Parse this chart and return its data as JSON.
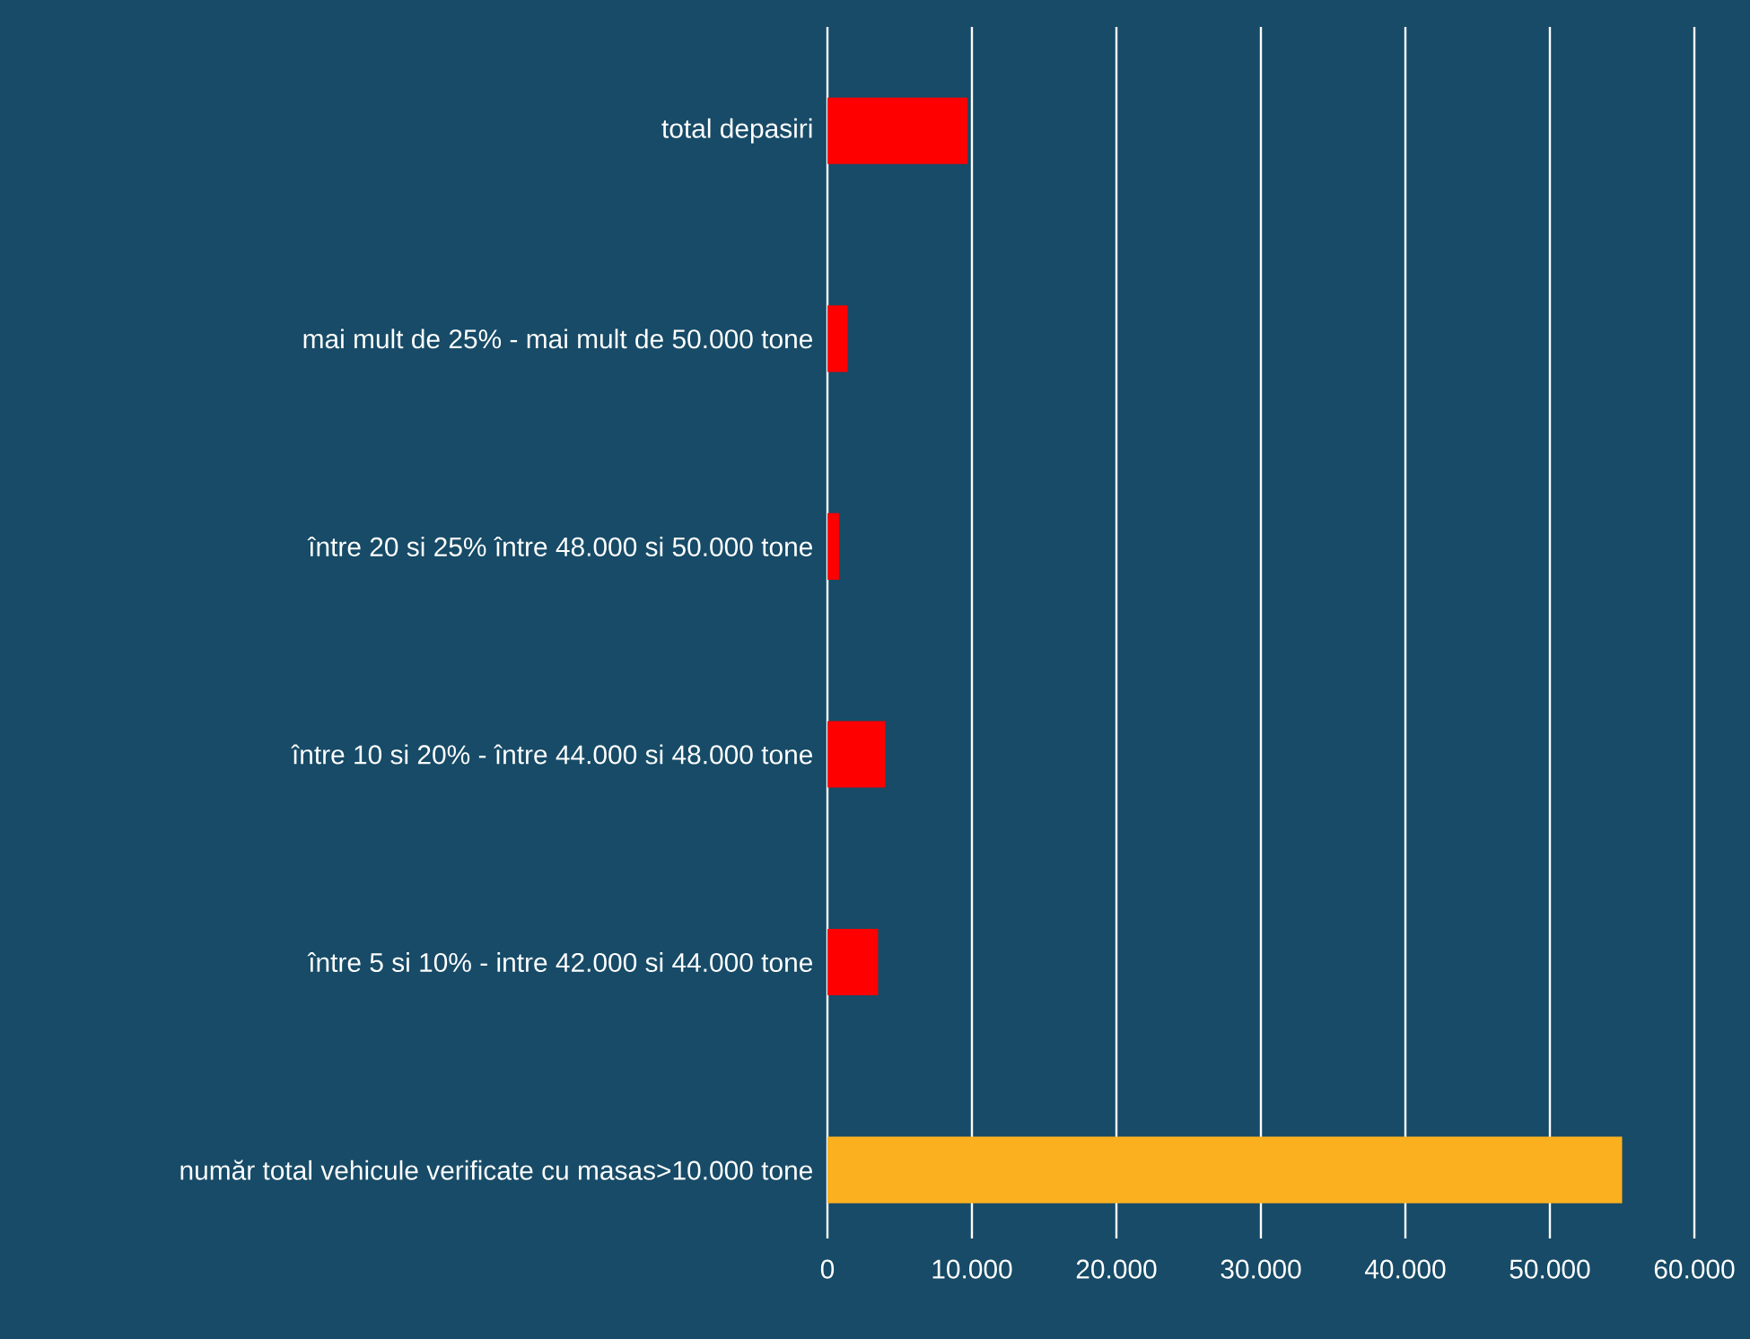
{
  "chart_data": {
    "type": "bar",
    "orientation": "horizontal",
    "categories": [
      "total depasiri",
      "mai mult de 25% - mai mult de 50.000 tone",
      "între 20 si 25% între 48.000 si 50.000 tone",
      "între 10 si 20% - între 44.000 si 48.000 tone",
      "între 5 si 10% - intre 42.000 si 44.000 tone",
      "număr total vehicule verificate cu masas>10.000 tone"
    ],
    "values": [
      9700,
      1400,
      800,
      4000,
      3500,
      55000
    ],
    "colors": [
      "#ff0000",
      "#ff0000",
      "#ff0000",
      "#ff0000",
      "#ff0000",
      "#fbb11f"
    ],
    "xlim": [
      0,
      60000
    ],
    "xticks": [
      0,
      {
        "value": 10000,
        "label": "10.000"
      },
      {
        "value": 20000,
        "label": "20.000"
      },
      {
        "value": 30000,
        "label": "30.000"
      },
      {
        "value": 40000,
        "label": "40.000"
      },
      {
        "value": 50000,
        "label": "50.000"
      },
      {
        "value": 60000,
        "label": "60.000"
      }
    ],
    "grid": "x"
  }
}
